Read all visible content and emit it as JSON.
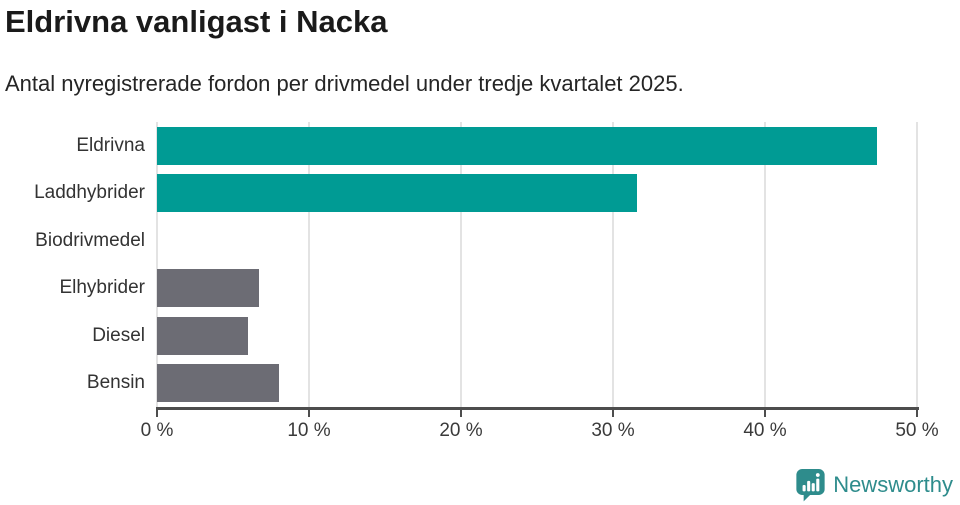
{
  "header": {
    "title": "Eldrivna vanligast i Nacka",
    "subtitle": "Antal nyregistrerade fordon per drivmedel under tredje kvartalet 2025."
  },
  "chart_data": {
    "type": "bar",
    "orientation": "horizontal",
    "title": "Eldrivna vanligast i Nacka",
    "subtitle": "Antal nyregistrerade fordon per drivmedel under tredje kvartalet 2025.",
    "categories": [
      "Eldrivna",
      "Laddhybrider",
      "Biodrivmedel",
      "Elhybrider",
      "Diesel",
      "Bensin"
    ],
    "values": [
      47.4,
      31.6,
      0,
      6.7,
      6.0,
      8.0
    ],
    "unit": "%",
    "bar_colors": [
      "#009b94",
      "#009b94",
      "#6c6c74",
      "#6c6c74",
      "#6c6c74",
      "#6c6c74"
    ],
    "highlight_color": "#009b94",
    "default_color": "#6c6c74",
    "xlim": [
      0,
      50
    ],
    "x_ticks": [
      0,
      10,
      20,
      30,
      40,
      50
    ],
    "x_tick_labels": [
      "0 %",
      "10 %",
      "20 %",
      "30 %",
      "40 %",
      "50 %"
    ],
    "grid": true,
    "legend_position": "none"
  },
  "footer": {
    "brand": "Newsworthy",
    "brand_color": "#2e8c8c"
  }
}
